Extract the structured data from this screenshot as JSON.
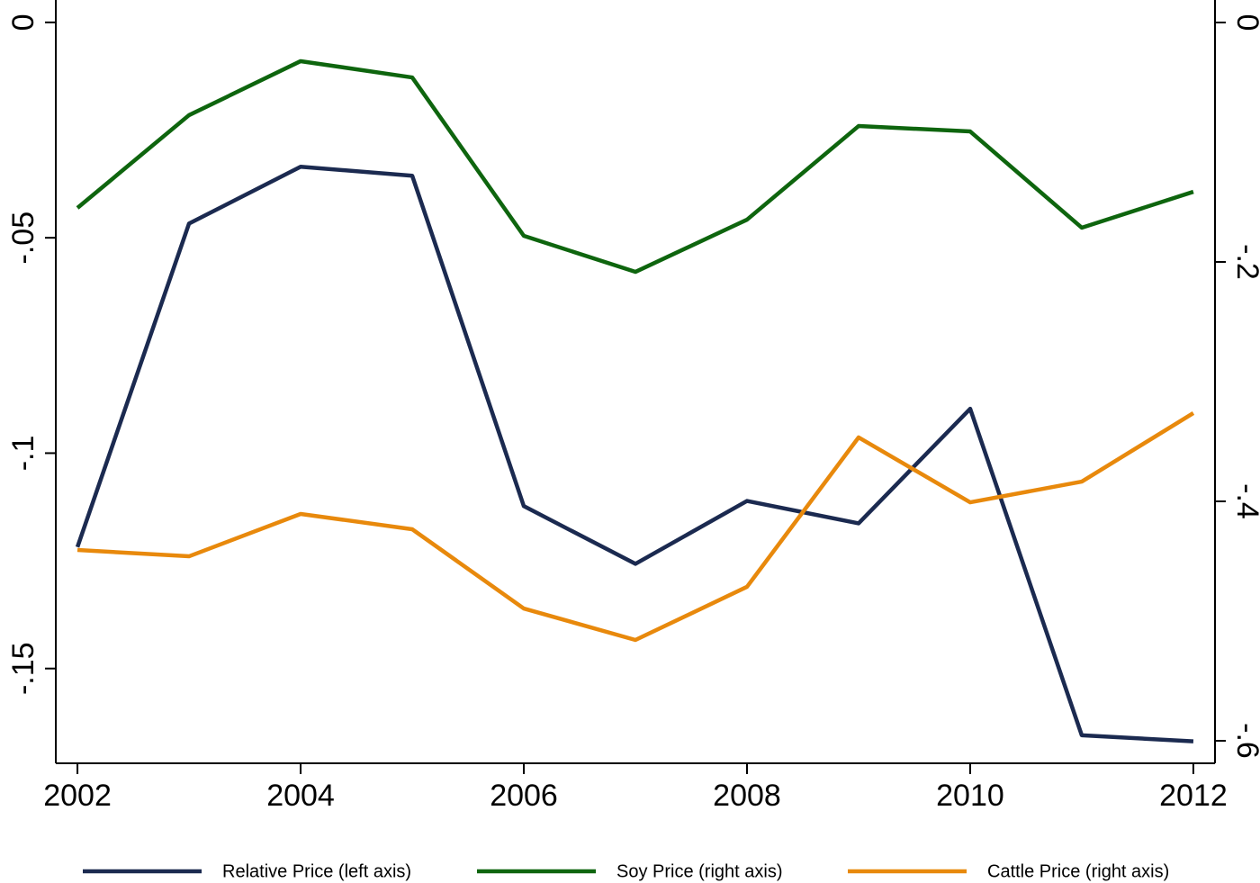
{
  "chart_data": {
    "type": "line",
    "x": [
      2002,
      2003,
      2004,
      2005,
      2006,
      2007,
      2008,
      2009,
      2010,
      2011,
      2012
    ],
    "xlim": [
      2001.806,
      2012.194
    ],
    "xticks": [
      2002,
      2004,
      2006,
      2008,
      2010,
      2012
    ],
    "ylim": [
      -0.172,
      0.0052
    ],
    "yticks": [
      0,
      {
        "value": -0.05,
        "label": "-.05"
      },
      {
        "value": -0.1,
        "label": "-.1"
      },
      {
        "value": -0.15,
        "label": "-.15"
      }
    ],
    "y2lim": [
      -0.6188,
      0.0188
    ],
    "y2ticks": [
      0,
      {
        "value": -0.2,
        "label": "-.2"
      },
      {
        "value": -0.4,
        "label": "-.4"
      },
      {
        "value": -0.6,
        "label": "-.6"
      }
    ],
    "grid": false,
    "legend": "bottom",
    "series": [
      {
        "name": "Relative Price (left axis)",
        "color": "#1b2a50",
        "axis": "y",
        "values": [
          -0.1218,
          -0.0467,
          -0.0335,
          -0.0356,
          -0.1123,
          -0.1257,
          -0.1111,
          -0.1163,
          -0.0897,
          -0.1655,
          -0.1669
        ]
      },
      {
        "name": "Soy Price (right axis)",
        "color": "#0e650e",
        "axis": "y2",
        "values": [
          -0.1549,
          -0.0774,
          -0.0323,
          -0.0459,
          -0.1782,
          -0.2083,
          -0.1647,
          -0.0865,
          -0.091,
          -0.1714,
          -0.1414
        ]
      },
      {
        "name": "Cattle Price (right axis)",
        "color": "#e8890c",
        "axis": "y2",
        "values": [
          -0.4406,
          -0.4459,
          -0.4105,
          -0.4233,
          -0.4895,
          -0.5158,
          -0.4714,
          -0.3466,
          -0.4008,
          -0.3835,
          -0.3263
        ]
      }
    ]
  }
}
